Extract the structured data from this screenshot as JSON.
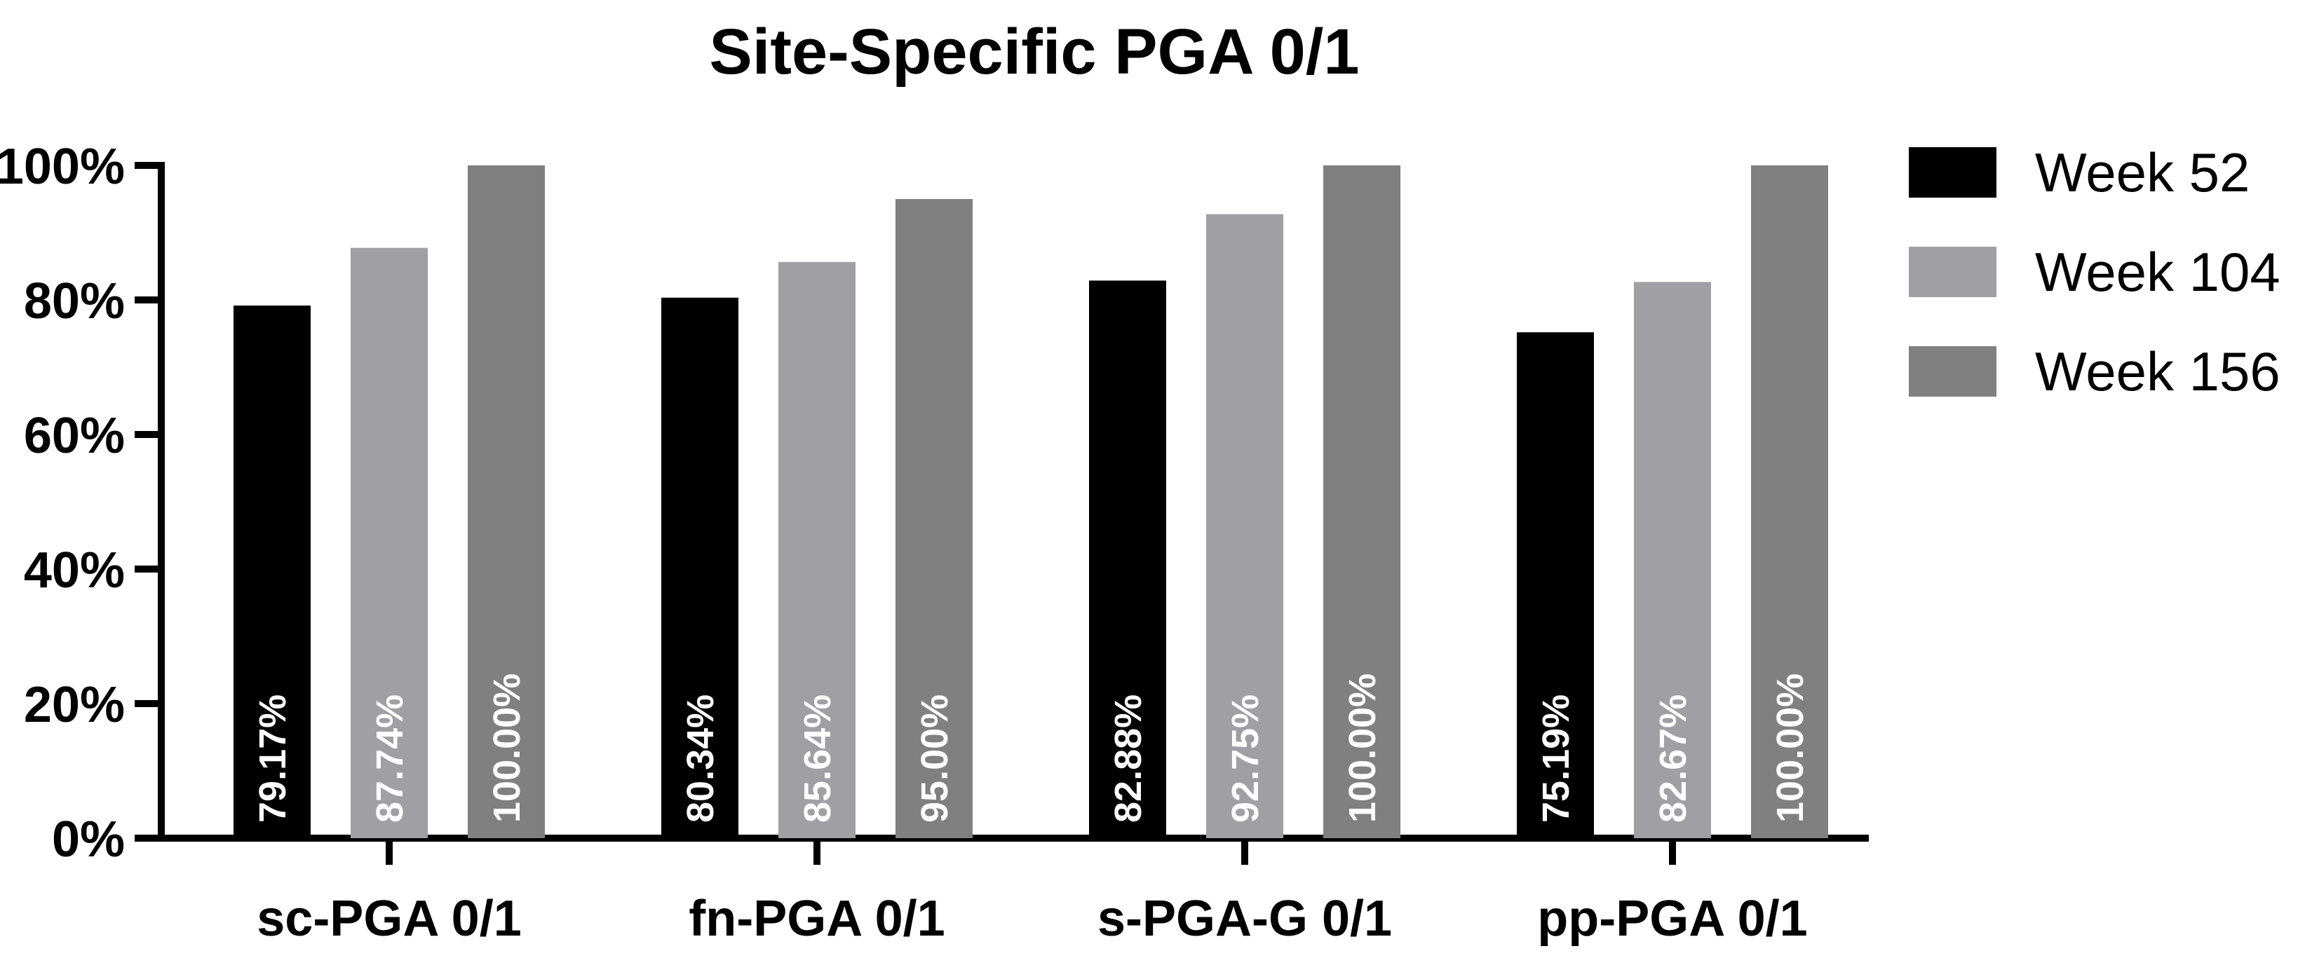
{
  "chart_data": {
    "type": "bar",
    "title": "Site-Specific PGA 0/1",
    "xlabel": "",
    "ylabel": "",
    "categories": [
      "sc-PGA 0/1",
      "fn-PGA 0/1",
      "s-PGA-G 0/1",
      "pp-PGA 0/1"
    ],
    "series": [
      {
        "name": "Week 52",
        "color": "#000000",
        "values": [
          79.17,
          80.34,
          82.88,
          75.19
        ],
        "labels": [
          "79.17%",
          "80.34%",
          "82.88%",
          "75.19%"
        ]
      },
      {
        "name": "Week 104",
        "color": "#a09fa4",
        "values": [
          87.74,
          85.64,
          92.75,
          82.67
        ],
        "labels": [
          "87.74%",
          "85.64%",
          "92.75%",
          "82.67%"
        ]
      },
      {
        "name": "Week 156",
        "color": "#808080",
        "values": [
          100.0,
          95.0,
          100.0,
          100.0
        ],
        "labels": [
          "100.00%",
          "95.00%",
          "100.00%",
          "100.00%"
        ]
      }
    ],
    "ylim": [
      0,
      100
    ],
    "yticks": [
      0,
      20,
      40,
      60,
      80,
      100
    ],
    "ytick_labels": [
      "0%",
      "20%",
      "40%",
      "60%",
      "80%",
      "100%"
    ],
    "grid": false,
    "legend_position": "top-right"
  }
}
